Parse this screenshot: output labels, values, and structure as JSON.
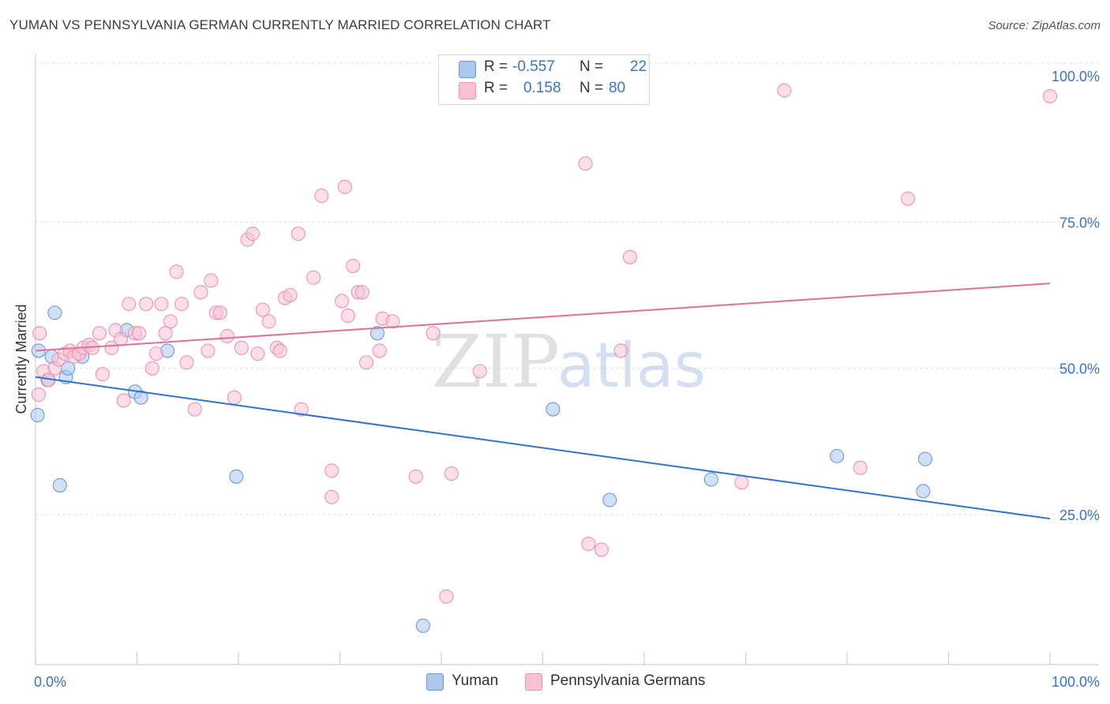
{
  "title": "YUMAN VS PENNSYLVANIA GERMAN CURRENTLY MARRIED CORRELATION CHART",
  "source": "Source: ZipAtlas.com",
  "watermark": {
    "zip": "ZIP",
    "atlas": "atlas"
  },
  "legend_top": {
    "rows": [
      {
        "r_label": "R =",
        "r_value": "-0.557",
        "n_label": "N =",
        "n_value": "22",
        "color": "#aac8ee",
        "edge": "#6d9ad6"
      },
      {
        "r_label": "R =",
        "r_value": "0.158",
        "n_label": "N =",
        "n_value": "80",
        "color": "#f7c3d3",
        "edge": "#e993b0"
      }
    ]
  },
  "legend_bottom": [
    {
      "label": "Yuman",
      "color": "#aac8ee",
      "edge": "#6d9ad6"
    },
    {
      "label": "Pennsylvania Germans",
      "color": "#f7c3d3",
      "edge": "#e993b0"
    }
  ],
  "chart_data": {
    "type": "scatter",
    "title": "YUMAN VS PENNSYLVANIA GERMAN CURRENTLY MARRIED CORRELATION CHART",
    "xlabel": "",
    "ylabel": "Currently Married",
    "xlim": [
      0,
      100
    ],
    "ylim": [
      0,
      105
    ],
    "x_tick_labels": [
      "0.0%",
      "100.0%"
    ],
    "y_ticks": [
      25,
      50,
      75,
      100
    ],
    "y_tick_labels": [
      "25.0%",
      "50.0%",
      "75.0%",
      "100.0%"
    ],
    "grid": true,
    "series": [
      {
        "name": "Yuman",
        "fill": "#aac8ee",
        "edge": "#6d9ad6",
        "line_color": "#2e72d2",
        "trend": {
          "x": [
            0,
            100
          ],
          "y": [
            48.5,
            24.3
          ]
        },
        "points": [
          [
            0.2,
            42
          ],
          [
            0.3,
            53
          ],
          [
            1.2,
            48
          ],
          [
            1.6,
            52
          ],
          [
            1.9,
            59.5
          ],
          [
            2.4,
            30
          ],
          [
            3.0,
            48.5
          ],
          [
            3.2,
            50
          ],
          [
            4.6,
            52
          ],
          [
            9.0,
            56.5
          ],
          [
            9.8,
            46
          ],
          [
            10.4,
            45
          ],
          [
            13.0,
            53
          ],
          [
            19.8,
            31.5
          ],
          [
            33.7,
            56
          ],
          [
            38.2,
            6
          ],
          [
            51.0,
            43
          ],
          [
            56.6,
            27.5
          ],
          [
            66.6,
            31
          ],
          [
            79.0,
            35
          ],
          [
            87.5,
            29
          ],
          [
            87.7,
            34.5
          ]
        ]
      },
      {
        "name": "Pennsylvania Germans",
        "fill": "#f7c3d3",
        "edge": "#e993b0",
        "line_color": "#e0709a",
        "trend": {
          "x": [
            0,
            100
          ],
          "y": [
            53,
            64.5
          ]
        },
        "points": [
          [
            0.3,
            45.5
          ],
          [
            0.8,
            49.5
          ],
          [
            1.3,
            48
          ],
          [
            1.9,
            50
          ],
          [
            2.3,
            51.5
          ],
          [
            2.9,
            52.5
          ],
          [
            3.4,
            53
          ],
          [
            3.8,
            52
          ],
          [
            4.3,
            52.5
          ],
          [
            4.7,
            53.5
          ],
          [
            5.3,
            54
          ],
          [
            5.6,
            53.5
          ],
          [
            6.3,
            56
          ],
          [
            6.6,
            49
          ],
          [
            7.5,
            53.5
          ],
          [
            7.9,
            56.5
          ],
          [
            8.4,
            55
          ],
          [
            8.7,
            44.5
          ],
          [
            9.2,
            61
          ],
          [
            9.8,
            56
          ],
          [
            10.2,
            56
          ],
          [
            10.9,
            61
          ],
          [
            11.5,
            50
          ],
          [
            11.9,
            52.5
          ],
          [
            12.4,
            61
          ],
          [
            12.8,
            56
          ],
          [
            13.3,
            58
          ],
          [
            13.9,
            66.5
          ],
          [
            14.4,
            61
          ],
          [
            14.9,
            51
          ],
          [
            15.7,
            43
          ],
          [
            16.3,
            63
          ],
          [
            17.0,
            53
          ],
          [
            17.3,
            65
          ],
          [
            17.8,
            59.5
          ],
          [
            18.2,
            59.5
          ],
          [
            18.9,
            55.5
          ],
          [
            19.6,
            45
          ],
          [
            20.3,
            53.5
          ],
          [
            20.9,
            72
          ],
          [
            21.4,
            73
          ],
          [
            21.9,
            52.5
          ],
          [
            22.4,
            60
          ],
          [
            23.0,
            58
          ],
          [
            23.8,
            53.5
          ],
          [
            24.1,
            53
          ],
          [
            24.6,
            62
          ],
          [
            25.1,
            62.5
          ],
          [
            25.9,
            73
          ],
          [
            26.2,
            43
          ],
          [
            27.4,
            65.5
          ],
          [
            28.2,
            79.5
          ],
          [
            29.2,
            32.5
          ],
          [
            29.2,
            28
          ],
          [
            30.2,
            61.5
          ],
          [
            30.5,
            81
          ],
          [
            30.8,
            59
          ],
          [
            31.3,
            67.5
          ],
          [
            31.8,
            63
          ],
          [
            32.2,
            63
          ],
          [
            32.6,
            51
          ],
          [
            33.9,
            53
          ],
          [
            34.2,
            58.5
          ],
          [
            35.2,
            58
          ],
          [
            37.5,
            31.5
          ],
          [
            39.2,
            56
          ],
          [
            40.5,
            11
          ],
          [
            41.0,
            32
          ],
          [
            43.8,
            49.5
          ],
          [
            54.2,
            85
          ],
          [
            54.5,
            20
          ],
          [
            55.8,
            19
          ],
          [
            57.7,
            53
          ],
          [
            58.6,
            69
          ],
          [
            69.6,
            30.5
          ],
          [
            73.8,
            97.5
          ],
          [
            81.3,
            33
          ],
          [
            86.0,
            79
          ],
          [
            100.0,
            96.5
          ],
          [
            0.4,
            56
          ]
        ]
      }
    ]
  }
}
